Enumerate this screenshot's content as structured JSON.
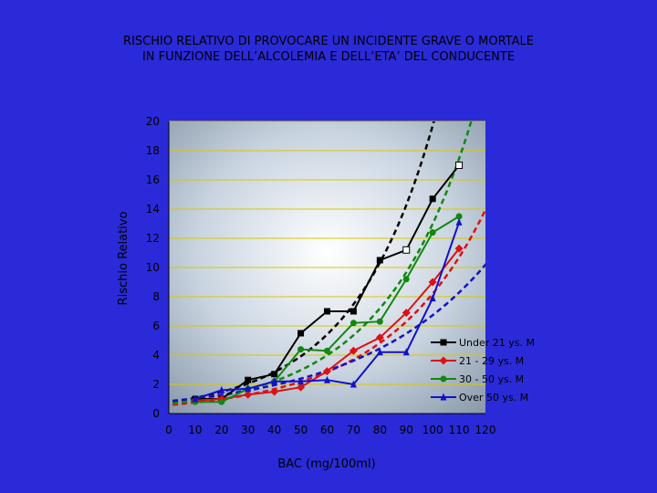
{
  "slide": {
    "title_line1": "RISCHIO RELATIVO DI PROVOCARE UN INCIDENTE GRAVE O MORTALE",
    "title_line2": "IN FUNZIONE DELL’ALCOLEMIA E DELL’ETA’ DEL CONDUCENTE",
    "background_color": "#2a2ad8"
  },
  "chart_data": {
    "type": "line",
    "title": "RISCHIO RELATIVO DI PROVOCARE UN INCIDENTE GRAVE O MORTALE IN FUNZIONE DELL’ALCOLEMIA E DELL’ETA’ DEL CONDUCENTE",
    "xlabel": "BAC (mg/100ml)",
    "ylabel": "Rischio Relativo",
    "xlim": [
      0,
      120
    ],
    "ylim": [
      0,
      20
    ],
    "x_ticks": [
      0,
      10,
      20,
      30,
      40,
      50,
      60,
      70,
      80,
      90,
      100,
      110,
      120
    ],
    "y_ticks": [
      0,
      2,
      4,
      6,
      8,
      10,
      12,
      14,
      16,
      18,
      20
    ],
    "grid": "horizontal",
    "legend_position": "bottom-right",
    "x": [
      10,
      20,
      30,
      40,
      50,
      60,
      70,
      80,
      90,
      100,
      110
    ],
    "series": [
      {
        "name": "Under 21 ys. M",
        "color": "#000000",
        "marker": "square",
        "values": [
          1.0,
          1.0,
          2.3,
          2.7,
          5.5,
          7.0,
          7.0,
          10.5,
          11.2,
          14.7,
          17.0
        ],
        "trend_coeff": [
          0.78,
          0.0323
        ]
      },
      {
        "name": "21 - 29 ys. M",
        "color": "#dd1111",
        "marker": "diamond",
        "values": [
          0.9,
          1.0,
          1.3,
          1.5,
          1.8,
          2.9,
          4.3,
          5.2,
          6.9,
          9.0,
          11.3
        ],
        "trend_coeff": [
          0.58,
          0.0265
        ]
      },
      {
        "name": "30 - 50 ys. M",
        "color": "#118811",
        "marker": "circle",
        "values": [
          0.8,
          0.8,
          1.7,
          2.2,
          4.4,
          4.3,
          6.2,
          6.3,
          9.2,
          12.4,
          13.5
        ],
        "trend_coeff": [
          0.68,
          0.0295
        ]
      },
      {
        "name": "Over 50 ys. M",
        "color": "#1111cc",
        "marker": "triangle",
        "values": [
          1.0,
          1.6,
          1.7,
          2.2,
          2.2,
          2.3,
          2.0,
          4.2,
          4.2,
          7.9,
          13.1
        ],
        "trend_coeff": [
          0.85,
          0.0207
        ]
      }
    ]
  }
}
